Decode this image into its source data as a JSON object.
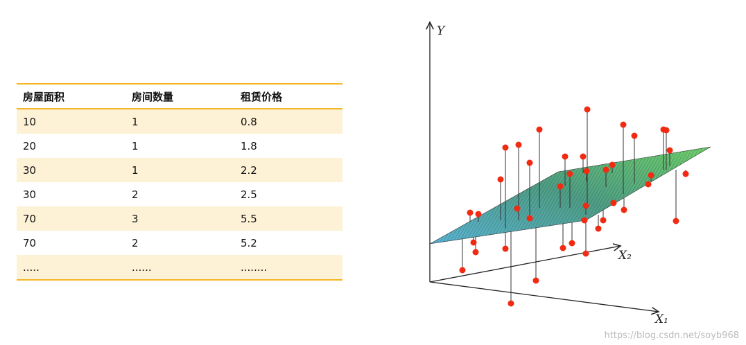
{
  "table": {
    "header": [
      "房屋面积",
      "房间数量",
      "租赁价格"
    ],
    "rows": [
      [
        10,
        1,
        0.8
      ],
      [
        20,
        1,
        1.8
      ],
      [
        30,
        1,
        2.2
      ],
      [
        30,
        2,
        2.5
      ],
      [
        70,
        3,
        5.5
      ],
      [
        70,
        2,
        5.2
      ],
      [
        ".....",
        "......",
        "........"
      ]
    ]
  },
  "figure": {
    "y_label": "Y",
    "x2_label": "X₂",
    "x1_label": "X₁"
  },
  "watermark": "https://blog.csdn.net/soyb968"
}
